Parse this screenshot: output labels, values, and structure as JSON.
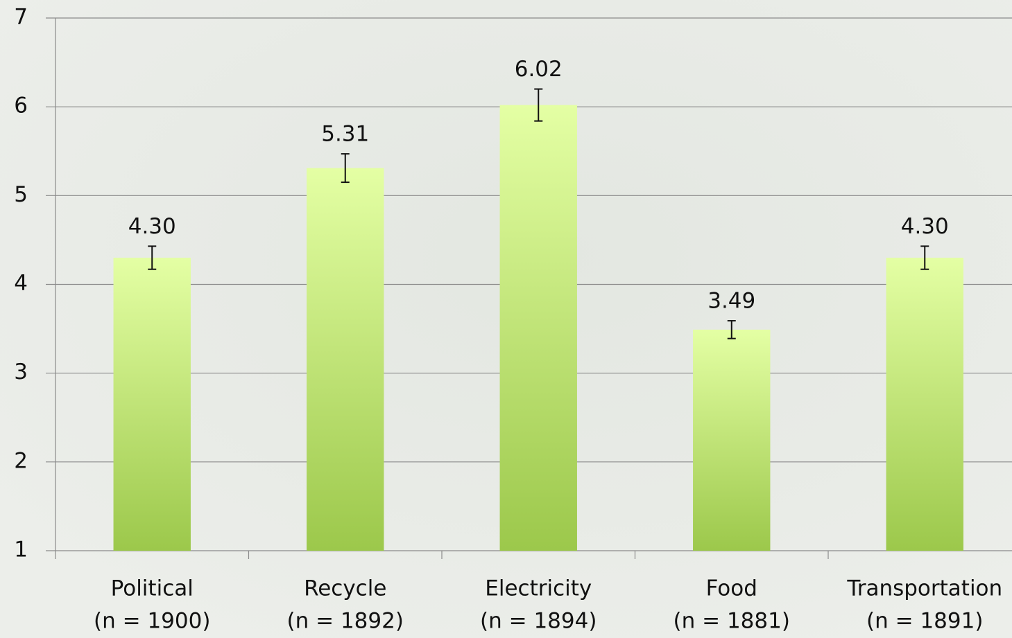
{
  "chart_data": {
    "type": "bar",
    "categories": [
      [
        "Political",
        "(n = 1900)"
      ],
      [
        "Recycle",
        "(n = 1892)"
      ],
      [
        "Electricity",
        "(n = 1894)"
      ],
      [
        "Food",
        "(n = 1881)"
      ],
      [
        "Transportation",
        "(n = 1891)"
      ]
    ],
    "values": [
      4.3,
      5.31,
      6.02,
      3.49,
      4.3
    ],
    "value_labels": [
      "4.30",
      "5.31",
      "6.02",
      "3.49",
      "4.30"
    ],
    "errors": [
      0.13,
      0.16,
      0.18,
      0.1,
      0.13
    ],
    "color": [
      "#e4ffa4",
      "#9cc84b"
    ],
    "ylim": [
      1,
      7
    ],
    "yticks": [
      1,
      2,
      3,
      4,
      5,
      6,
      7
    ],
    "grid": true
  }
}
